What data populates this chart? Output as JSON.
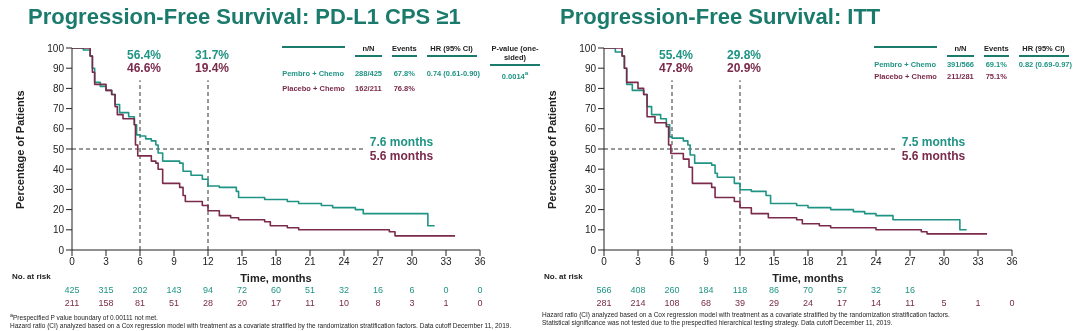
{
  "chart_data": [
    {
      "type": "step",
      "title": "Progression-Free Survival: PD-L1 CPS ≥1",
      "xlabel": "Time, months",
      "ylabel": "Percentage of Patients",
      "xlim": [
        0,
        36
      ],
      "xticks": [
        0,
        3,
        6,
        9,
        12,
        15,
        18,
        21,
        24,
        27,
        30,
        33,
        36
      ],
      "ylim": [
        0,
        100
      ],
      "yticks": [
        0,
        10,
        20,
        30,
        40,
        50,
        60,
        70,
        80,
        90,
        100
      ],
      "legend": "top right",
      "series": [
        {
          "name": "Pembro + Chemo",
          "color": "#1f9484",
          "x": [
            0,
            1,
            1.6,
            1.8,
            2,
            2.5,
            3,
            3.5,
            3.8,
            4.2,
            5,
            5.5,
            5.7,
            6,
            6.5,
            7,
            7.4,
            7.6,
            8,
            9.5,
            9.8,
            10.5,
            11.5,
            12,
            13,
            14.5,
            14.7,
            17,
            19,
            20,
            22,
            23,
            25,
            25.7,
            31.4,
            32
          ],
          "values": [
            100,
            99,
            96,
            90,
            83,
            81,
            79,
            77,
            72,
            68,
            66,
            62,
            57,
            56.4,
            55,
            54,
            52,
            48,
            44,
            43,
            39,
            37,
            35,
            31.7,
            31,
            29,
            26,
            25,
            24,
            23,
            22,
            21,
            20,
            18,
            12,
            12
          ]
        },
        {
          "name": "Placebo + Chemo",
          "color": "#7a2a4a",
          "x": [
            0,
            1.6,
            1.8,
            2,
            3,
            3.5,
            3.8,
            4,
            4.5,
            5.5,
            5.6,
            5.8,
            7,
            7.4,
            7.6,
            8,
            9.5,
            9.8,
            10,
            11.5,
            12,
            13,
            14,
            14.7,
            17,
            17.5,
            19,
            20,
            28,
            28.5,
            33.8
          ],
          "values": [
            100,
            96,
            88,
            82,
            79,
            77,
            71,
            67,
            65,
            62,
            52,
            46.6,
            44,
            43,
            40,
            33,
            31,
            27,
            24,
            22,
            19.4,
            17,
            16,
            15,
            14,
            12,
            11,
            10,
            9,
            7,
            7
          ]
        }
      ],
      "ref_lines": [
        {
          "axis": "x",
          "value": 6,
          "color": "#333333",
          "line_style": "dashed"
        },
        {
          "axis": "x",
          "value": 12,
          "color": "#333333",
          "line_style": "dashed"
        },
        {
          "axis": "y",
          "value": 50,
          "color": "#333333",
          "line_style": "dashed"
        }
      ],
      "annotations": [
        "56.4%",
        "46.6%",
        "31.7%",
        "19.4%",
        "7.6 months",
        "5.6 months",
        "No. at risk",
        "425 315 202 143 94 72 60 51 32 16 6 0 0",
        "211 158 81 51 28 20 17 11 10 8 3 1 0",
        "n/N",
        "Events",
        "HR (95% CI)",
        "P-value (one-sided)",
        "288/425",
        "67.8%",
        "0.74 (0.61-0.90)",
        "0.0014$^{a}$",
        "162/211",
        "76.8%",
        "$^{a}$Prespecified P value boundary of 0.00111 not met.",
        "Hazard ratio (CI) analyzed based on a Cox regression model with treatment as a covariate stratified by the randomization stratification factors. Data cutoff December 11, 2019."
      ]
    },
    {
      "type": "step",
      "title": "Progression-Free Survival: ITT",
      "xlabel": "Time, months",
      "ylabel": "Percentage of Patients",
      "xlim": [
        0,
        36
      ],
      "xticks": [
        0,
        3,
        6,
        9,
        12,
        15,
        18,
        21,
        24,
        27,
        30,
        33,
        36
      ],
      "ylim": [
        0,
        100
      ],
      "yticks": [
        0,
        10,
        20,
        30,
        40,
        50,
        60,
        70,
        80,
        90,
        100
      ],
      "legend": "top right",
      "series": [
        {
          "name": "Pembro + Chemo",
          "color": "#1f9484",
          "x": [
            0,
            1,
            1.6,
            1.8,
            2,
            2.5,
            3.5,
            3.8,
            4.2,
            5,
            5.5,
            5.8,
            6,
            7,
            7.4,
            7.6,
            8,
            9.5,
            9.8,
            10,
            11.5,
            12,
            13,
            14.3,
            14.7,
            17,
            18,
            20,
            22,
            23,
            24,
            25.5,
            31.4,
            32
          ],
          "values": [
            100,
            98,
            96,
            90,
            82,
            79,
            77,
            71,
            67,
            65,
            62,
            56,
            55.4,
            54,
            52,
            47,
            43,
            42,
            38,
            36,
            33,
            29.8,
            29,
            27,
            23,
            22,
            21,
            20,
            19,
            18,
            17,
            15,
            10,
            10
          ]
        },
        {
          "name": "Placebo + Chemo",
          "color": "#7a2a4a",
          "x": [
            0,
            1.6,
            1.8,
            2,
            3,
            3.5,
            3.8,
            4.5,
            5.5,
            5.7,
            5.9,
            7,
            7.5,
            7.8,
            9.5,
            9.8,
            11.5,
            12,
            13,
            14.5,
            17,
            17.5,
            19,
            20,
            24,
            28,
            28.5,
            33.8
          ],
          "values": [
            100,
            96,
            90,
            83,
            80,
            77,
            66,
            63,
            61,
            52,
            47.8,
            45,
            41,
            33,
            31,
            26,
            24,
            20.9,
            18,
            16,
            15,
            13,
            12,
            11,
            10,
            9,
            8,
            8
          ]
        }
      ],
      "ref_lines": [
        {
          "axis": "x",
          "value": 6,
          "color": "#333333",
          "line_style": "dashed"
        },
        {
          "axis": "x",
          "value": 12,
          "color": "#333333",
          "line_style": "dashed"
        },
        {
          "axis": "y",
          "value": 50,
          "color": "#333333",
          "line_style": "dashed"
        }
      ],
      "annotations": [
        "55.4%",
        "47.8%",
        "29.8%",
        "20.9%",
        "7.5 months",
        "5.6 months",
        "No. at risk",
        "566 408 260 184 118 86 70 57 32 16",
        "281 214 108 68 39 29 24 17 14 11 5 1 0",
        "n/N",
        "Events",
        "HR (95% CI)",
        "391/566",
        "69.1%",
        "0.82 (0.69-0.97)",
        "211/281",
        "75.1%",
        "Hazard ratio (CI) analyzed based on a Cox regression model with treatment as a covariate stratified by the randomization stratification factors.",
        "Statistical significance was not tested due to the prespecified hierarchical testing strategy. Data cutoff December 11, 2019."
      ]
    }
  ]
}
